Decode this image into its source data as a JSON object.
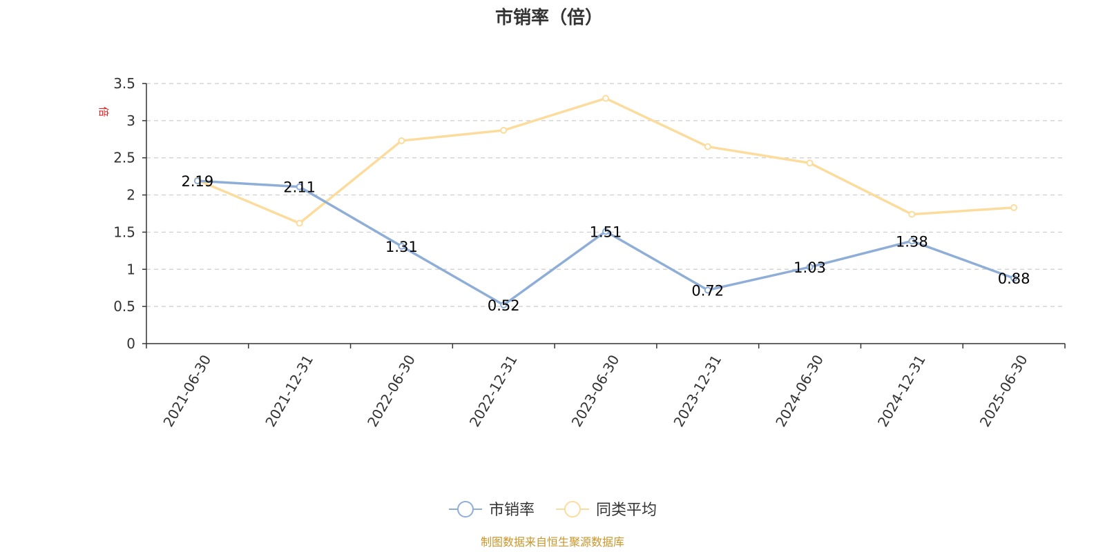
{
  "chart_data": {
    "type": "line",
    "title": "市销率（倍）",
    "y_unit": "倍",
    "x": [
      "2021-06-30",
      "2021-12-31",
      "2022-06-30",
      "2022-12-31",
      "2023-06-30",
      "2023-12-31",
      "2024-06-30",
      "2024-12-31",
      "2025-06-30"
    ],
    "ylim": [
      0,
      3.5
    ],
    "y_ticks": [
      "0",
      "0.5",
      "1",
      "1.5",
      "2",
      "2.5",
      "3",
      "3.5"
    ],
    "grid": true,
    "legend_position": "bottom-center",
    "series": [
      {
        "name": "市销率",
        "color": "#8eaed8",
        "values": [
          2.19,
          2.11,
          1.31,
          0.52,
          1.51,
          0.72,
          1.03,
          1.38,
          0.88
        ],
        "labels": [
          "2.19",
          "2.11",
          "1.31",
          "0.52",
          "1.51",
          "0.72",
          "1.03",
          "1.38",
          "0.88"
        ]
      },
      {
        "name": "同类平均",
        "color": "#fcdc9c",
        "values": [
          2.2,
          1.62,
          2.73,
          2.87,
          3.3,
          2.65,
          2.43,
          1.74,
          1.83
        ]
      }
    ]
  },
  "source": "制图数据来自恒生聚源数据库",
  "colors": {
    "unit": "#e02020",
    "source": "#c8962a",
    "axis": "#333333",
    "grid": "#cccccc"
  }
}
